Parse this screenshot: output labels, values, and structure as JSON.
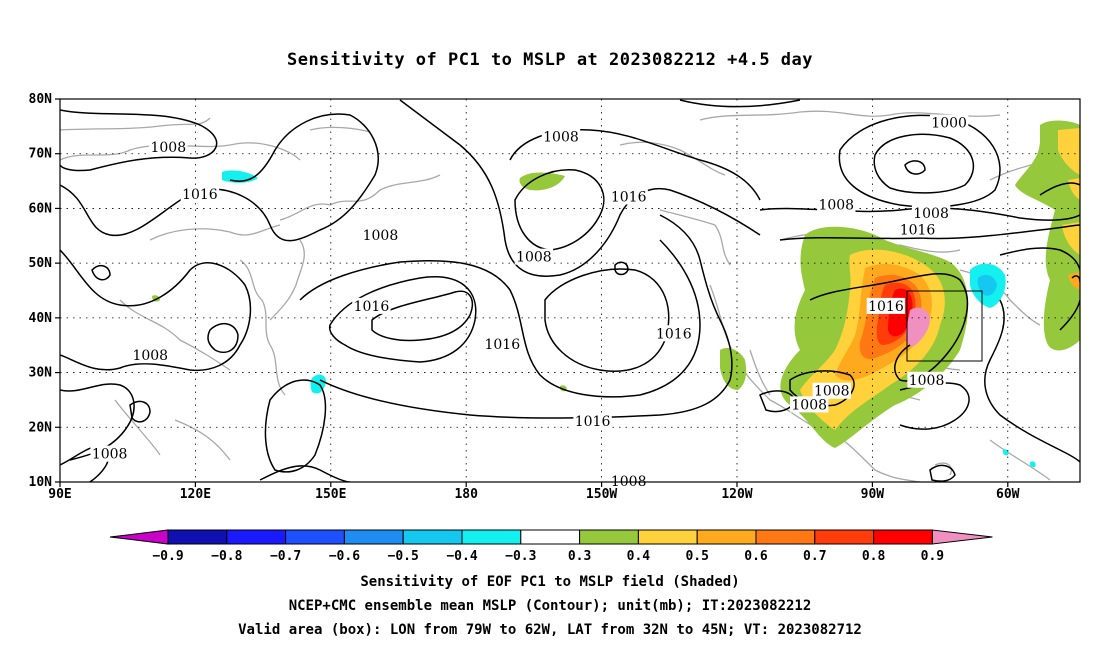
{
  "title": "Sensitivity of PC1 to MSLP at 2023082212 +4.5 day",
  "lat_labels": [
    {
      "text": "80N",
      "lat": 80
    },
    {
      "text": "70N",
      "lat": 70
    },
    {
      "text": "60N",
      "lat": 60
    },
    {
      "text": "50N",
      "lat": 50
    },
    {
      "text": "40N",
      "lat": 40
    },
    {
      "text": "30N",
      "lat": 30
    },
    {
      "text": "20N",
      "lat": 20
    },
    {
      "text": "10N",
      "lat": 10
    }
  ],
  "lon_labels": [
    {
      "text": "90E",
      "lon": 90
    },
    {
      "text": "120E",
      "lon": 120
    },
    {
      "text": "150E",
      "lon": 150
    },
    {
      "text": "180",
      "lon": 180
    },
    {
      "text": "150W",
      "lon": 210
    },
    {
      "text": "120W",
      "lon": 240
    },
    {
      "text": "90W",
      "lon": 270
    },
    {
      "text": "60W",
      "lon": 300
    }
  ],
  "map_extent": {
    "lon_min": 90,
    "lon_max": 316,
    "lat_min": 10,
    "lat_max": 80
  },
  "valid_box": {
    "lon_west": -79,
    "lon_east": -62,
    "lat_south": 32,
    "lat_north": 45
  },
  "contour_labels": [
    {
      "text": "1008",
      "lon": 114,
      "lat": 71
    },
    {
      "text": "1016",
      "lon": 121,
      "lat": 62.5
    },
    {
      "text": "1008",
      "lon": 161,
      "lat": 55
    },
    {
      "text": "1008",
      "lon": 201,
      "lat": 73
    },
    {
      "text": "1016",
      "lon": 216,
      "lat": 62
    },
    {
      "text": "1008",
      "lon": 195,
      "lat": 51
    },
    {
      "text": "1016",
      "lon": 159,
      "lat": 42
    },
    {
      "text": "1016",
      "lon": 188,
      "lat": 35
    },
    {
      "text": "1016",
      "lon": 226,
      "lat": 37
    },
    {
      "text": "1016",
      "lon": 208,
      "lat": 21
    },
    {
      "text": "1008",
      "lon": 110,
      "lat": 33
    },
    {
      "text": "1008",
      "lon": 101,
      "lat": 15
    },
    {
      "text": "1008",
      "lon": 216,
      "lat": 10
    },
    {
      "text": "1008",
      "lon": 262,
      "lat": 60.5
    },
    {
      "text": "1000",
      "lon": 287,
      "lat": 75.5
    },
    {
      "text": "1008",
      "lon": 283,
      "lat": 59
    },
    {
      "text": "1016",
      "lon": 280,
      "lat": 56
    },
    {
      "text": "1016",
      "lon": 273,
      "lat": 42
    },
    {
      "text": "1008",
      "lon": 282,
      "lat": 28.5
    },
    {
      "text": "1008",
      "lon": 261,
      "lat": 26.5
    },
    {
      "text": "1008",
      "lon": 256,
      "lat": 24
    }
  ],
  "colorbar": {
    "labels": [
      "−0.9",
      "−0.8",
      "−0.7",
      "−0.6",
      "−0.5",
      "−0.4",
      "−0.3",
      "0.3",
      "0.4",
      "0.5",
      "0.6",
      "0.7",
      "0.8",
      "0.9"
    ],
    "colors": [
      "#c800c8",
      "#1010b0",
      "#1a1aff",
      "#1e50ff",
      "#1e8cf0",
      "#14c8f0",
      "#14f0f0",
      "#ffffff",
      "#96c83c",
      "#ffd23c",
      "#ffaa1e",
      "#ff7814",
      "#ff3c0a",
      "#ff0000",
      "#f090c0"
    ]
  },
  "captions": [
    "Sensitivity of EOF PC1 to MSLP field (Shaded)",
    "NCEP+CMC ensemble mean MSLP (Contour); unit(mb); IT:2023082212",
    "Valid area (box): LON from 79W to 62W, LAT from 32N to 45N; VT: 2023082712"
  ]
}
